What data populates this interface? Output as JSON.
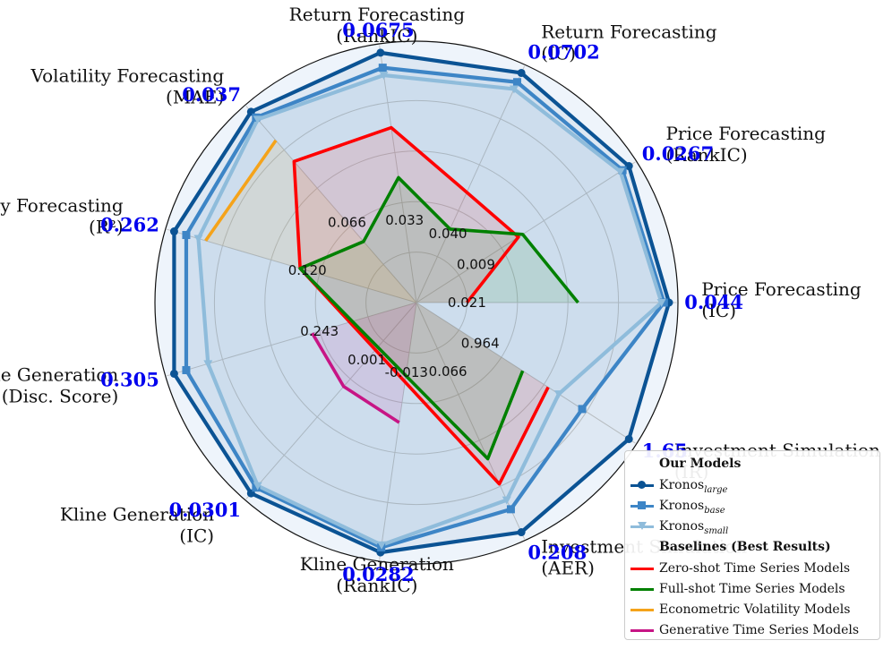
{
  "chart_data": {
    "type": "radar",
    "axes": [
      {
        "label": [
          "Price Forecasting",
          "(IC)"
        ],
        "best": "0.044"
      },
      {
        "label": [
          "Price Forecasting",
          "(RankIC)"
        ],
        "best": "0.0267"
      },
      {
        "label": [
          "Return Forecasting",
          "(IC)"
        ],
        "best": "0.0702"
      },
      {
        "label": [
          "Return Forecasting",
          "(RankIC)"
        ],
        "best": "0.0675"
      },
      {
        "label": [
          "Volatility Forecasting",
          "(MAE)"
        ],
        "best": "0.037"
      },
      {
        "label": [
          "Volatility Forecasting",
          "(R²)"
        ],
        "best": "0.262"
      },
      {
        "label": [
          "Kline Generation",
          "(Disc. Score)"
        ],
        "best": "0.305"
      },
      {
        "label": [
          "Kline Generation",
          "(IC)"
        ],
        "best": "0.0301"
      },
      {
        "label": [
          "Kline Generation",
          "(RankIC)"
        ],
        "best": "0.0282"
      },
      {
        "label": [
          "Investment Simulation",
          "(AER)"
        ],
        "best": "0.208"
      },
      {
        "label": [
          "Investment Simulation",
          "(IR)"
        ],
        "best": "1.65"
      }
    ],
    "baseline_labels": [
      "0.021",
      "0.009",
      "0.040",
      "0.033",
      "0.066",
      "0.120",
      "0.243",
      "0.001",
      "-0.013",
      "0.066",
      "0.964"
    ],
    "series": [
      {
        "name": "Kronos large",
        "group": "ours",
        "color": "#0b5394",
        "marker": "circle",
        "values": [
          1.0,
          1.0,
          1.0,
          1.0,
          1.0,
          1.0,
          1.0,
          1.0,
          1.0,
          1.0,
          1.0
        ]
      },
      {
        "name": "Kronos base",
        "group": "ours",
        "color": "#3d85c6",
        "marker": "square",
        "values": [
          0.98,
          0.97,
          0.96,
          0.94,
          0.97,
          0.95,
          0.95,
          0.97,
          0.98,
          0.9,
          0.78
        ]
      },
      {
        "name": "Kronos small",
        "group": "ours",
        "color": "#8fbcdb",
        "marker": "triangle",
        "values": [
          0.97,
          0.96,
          0.93,
          0.91,
          0.96,
          0.9,
          0.86,
          0.96,
          0.97,
          0.86,
          0.67
        ]
      },
      {
        "name": "Zero-shot Time Series Models",
        "group": "baseline",
        "color": "#ff0000",
        "values": [
          0.2,
          0.48,
          0.48,
          0.7,
          0.74,
          0.48,
          null,
          null,
          null,
          0.79,
          0.62
        ]
      },
      {
        "name": "Full-shot Time Series Models",
        "group": "baseline",
        "color": "#008000",
        "values": [
          0.64,
          0.5,
          0.32,
          0.5,
          0.32,
          0.48,
          null,
          null,
          null,
          0.68,
          0.5
        ]
      },
      {
        "name": "Econometric Volatility Models",
        "group": "baseline",
        "color": "#f5a31a",
        "values": [
          null,
          null,
          null,
          null,
          0.85,
          0.87,
          null,
          null,
          null,
          null,
          null
        ]
      },
      {
        "name": "Generative Time Series Models",
        "group": "baseline",
        "color": "#c71585",
        "values": [
          null,
          null,
          null,
          null,
          null,
          null,
          0.43,
          0.44,
          0.48,
          null,
          null
        ]
      }
    ],
    "legend": {
      "ours_title": "Our Models",
      "ours": [
        {
          "base": "Kronos",
          "sub": "large",
          "color": "#0b5394",
          "marker": "circle"
        },
        {
          "base": "Kronos",
          "sub": "base",
          "color": "#3d85c6",
          "marker": "square"
        },
        {
          "base": "Kronos",
          "sub": "small",
          "color": "#8fbcdb",
          "marker": "triangle"
        }
      ],
      "baselines_title": "Baselines (Best Results)",
      "baselines": [
        {
          "label": "Zero-shot Time Series Models",
          "color": "#ff0000"
        },
        {
          "label": "Full-shot Time Series Models",
          "color": "#008000"
        },
        {
          "label": "Econometric Volatility Models",
          "color": "#f5a31a"
        },
        {
          "label": "Generative Time Series Models",
          "color": "#c71585"
        }
      ]
    },
    "grid": true,
    "legend_position": "bottom-right"
  }
}
